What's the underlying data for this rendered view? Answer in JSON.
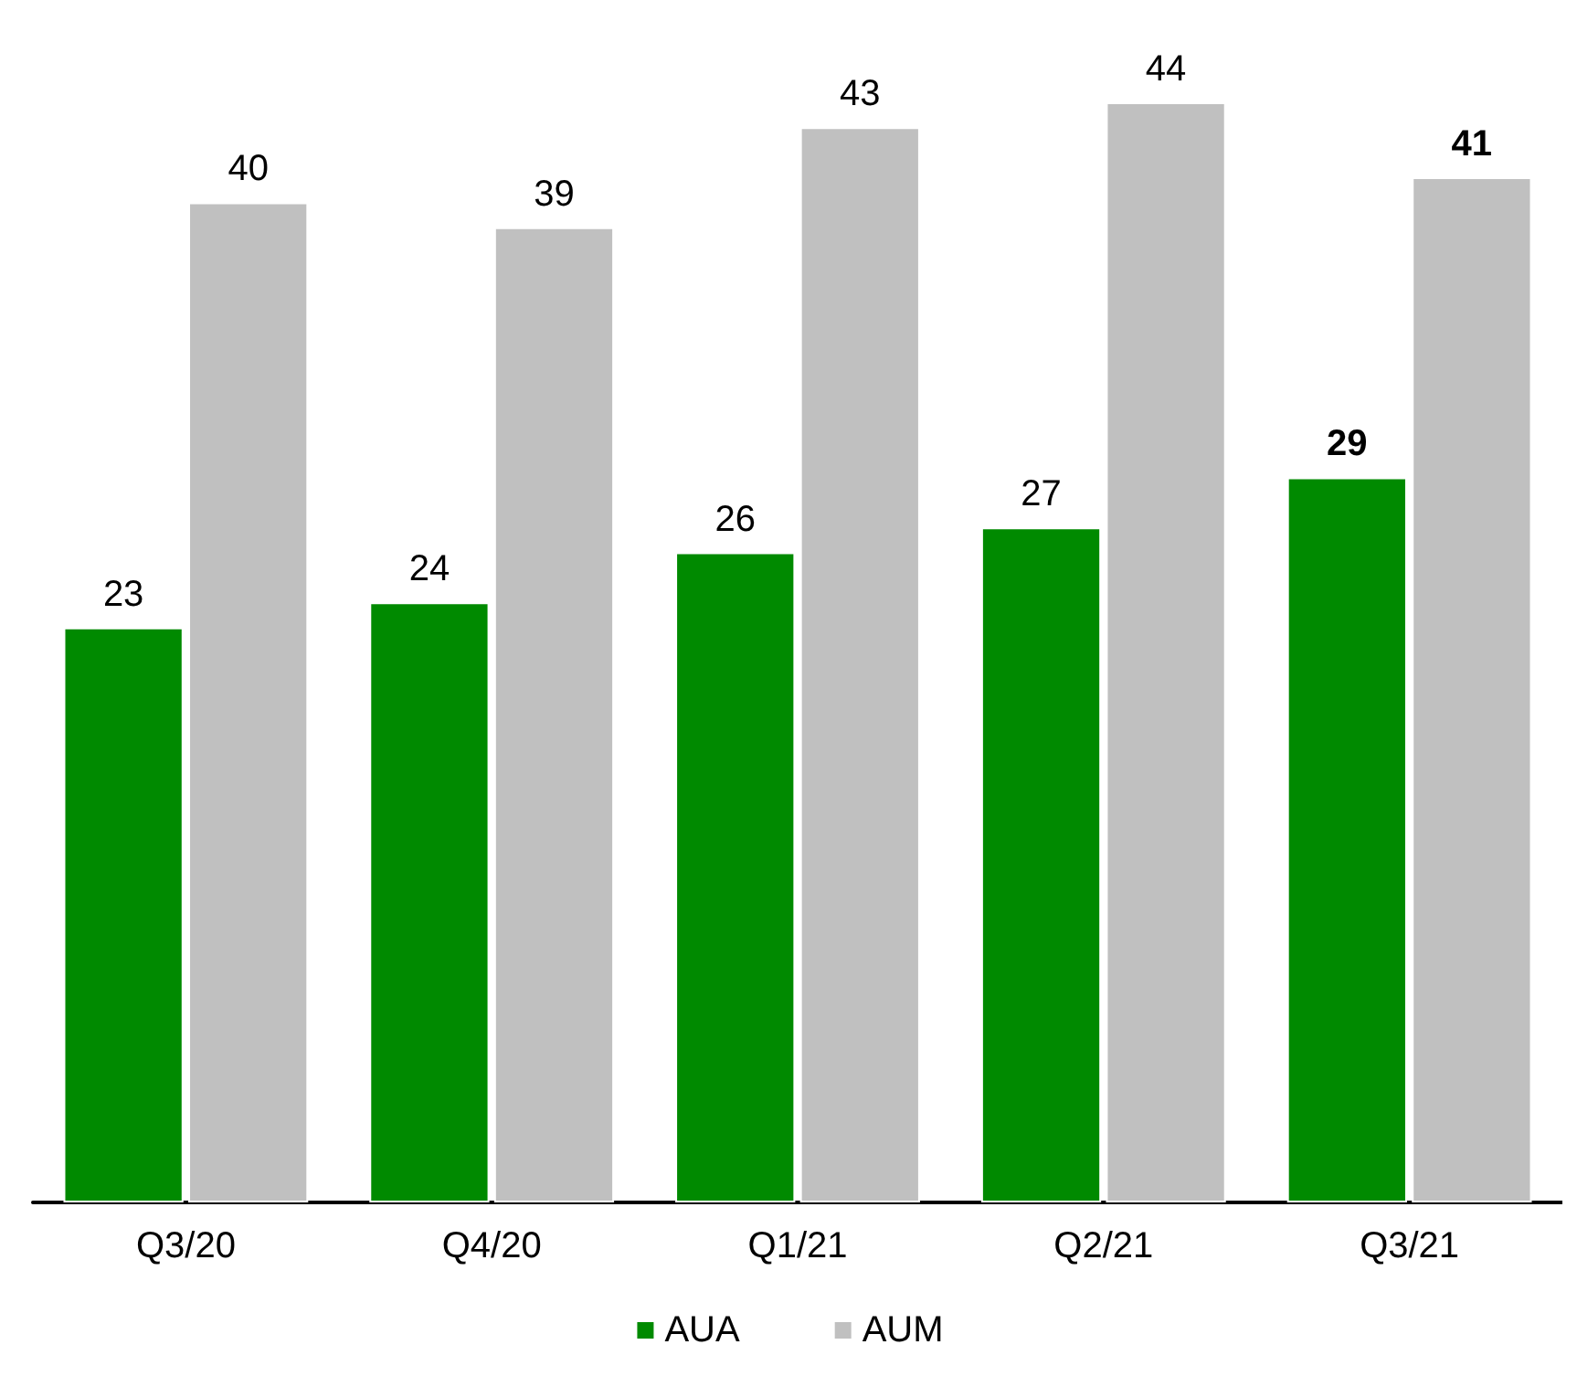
{
  "chart_data": {
    "type": "bar",
    "categories": [
      "Q3/20",
      "Q4/20",
      "Q1/21",
      "Q2/21",
      "Q3/21"
    ],
    "series": [
      {
        "name": "AUA",
        "color": "#008a00",
        "values": [
          23,
          24,
          26,
          27,
          29
        ]
      },
      {
        "name": "AUM",
        "color": "#c0c0c0",
        "values": [
          40,
          39,
          43,
          44,
          41
        ]
      }
    ],
    "ylim": [
      0,
      44
    ],
    "tick_labels": "x",
    "data_labels": true,
    "grid": false,
    "legend": "bottom"
  }
}
